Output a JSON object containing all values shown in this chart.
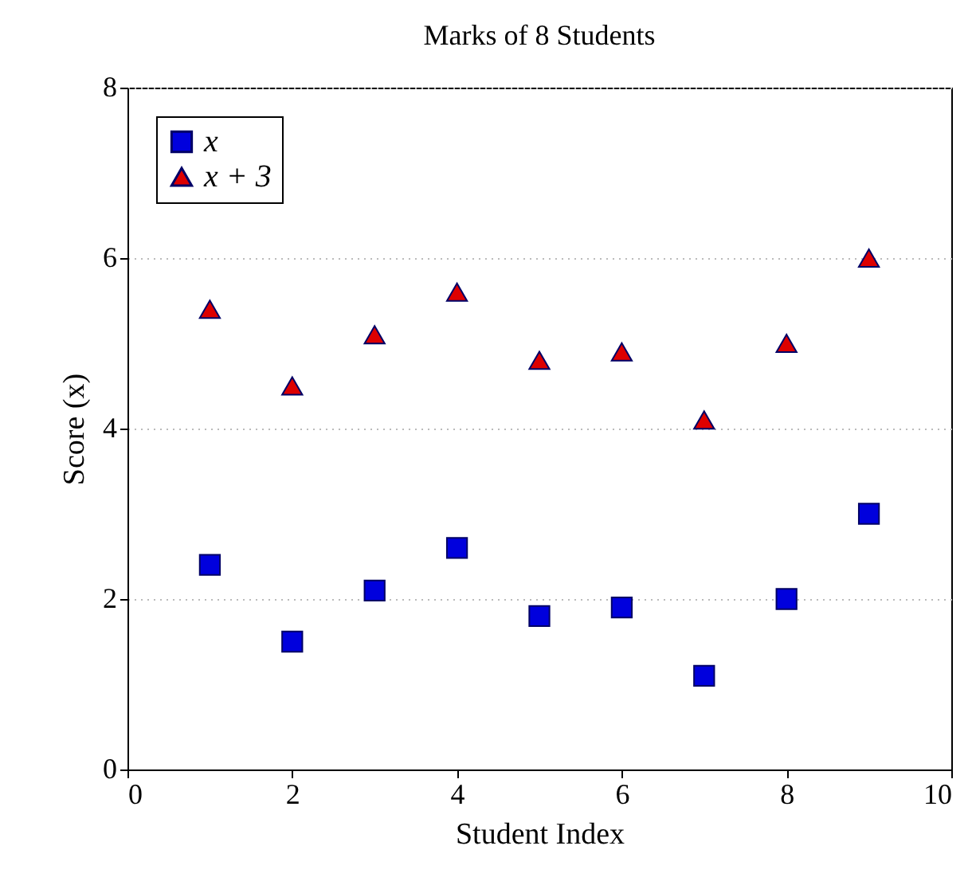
{
  "chart_data": {
    "type": "scatter",
    "title": "Marks of 8 Students",
    "xlabel": "Student Index",
    "ylabel": "Score (x)",
    "x": [
      1,
      2,
      3,
      4,
      5,
      6,
      7,
      8,
      9
    ],
    "series": [
      {
        "name": "x",
        "color": "#0000dd",
        "marker": "square",
        "values": [
          2.4,
          1.5,
          2.1,
          2.6,
          1.8,
          1.9,
          1.1,
          2.0,
          3.0
        ]
      },
      {
        "name": "x + 3",
        "color": "#dd0000",
        "marker": "triangle",
        "values": [
          5.4,
          4.5,
          5.1,
          5.6,
          4.8,
          4.9,
          4.1,
          5.0,
          6.0
        ]
      }
    ],
    "xlim": [
      0,
      10
    ],
    "xticks": [
      0,
      2,
      4,
      6,
      8,
      10
    ],
    "ylim": [
      0,
      8
    ],
    "yticks": [
      0,
      2,
      4,
      6,
      8
    ],
    "grid": "y",
    "legend": "top left"
  }
}
